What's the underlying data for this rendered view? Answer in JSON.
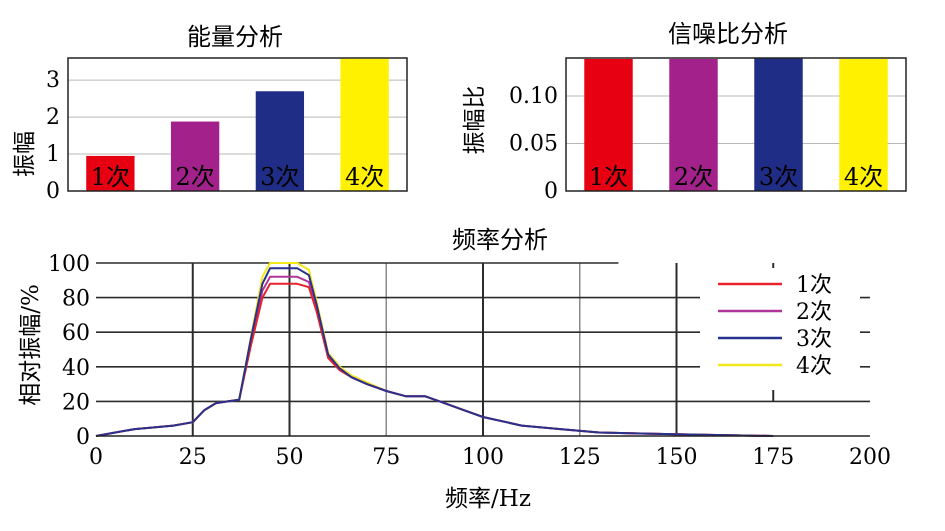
{
  "chart_data": [
    {
      "type": "bar",
      "title": "能量分析",
      "xlabel": "",
      "ylabel": "振幅",
      "categories": [
        "1次",
        "2次",
        "3次",
        "4次"
      ],
      "values": [
        0.95,
        1.88,
        2.7,
        3.58
      ],
      "colors": [
        "#e60012",
        "#a3218a",
        "#1f2d86",
        "#fff100"
      ],
      "ylim": [
        0,
        3.6
      ],
      "yticks": [
        "0",
        "1",
        "2",
        "3"
      ],
      "grid": true
    },
    {
      "type": "bar",
      "title": "信噪比分析",
      "xlabel": "",
      "ylabel": "振幅比",
      "categories": [
        "1次",
        "2次",
        "3次",
        "4次"
      ],
      "values": [
        0.139,
        0.139,
        0.14,
        0.139
      ],
      "colors": [
        "#e60012",
        "#a3218a",
        "#1f2d86",
        "#fff100"
      ],
      "ylim": [
        0,
        0.14
      ],
      "yticks": [
        "0",
        "0.05",
        "0.10"
      ],
      "grid": true
    },
    {
      "type": "line",
      "title": "频率分析",
      "xlabel": "频率/Hz",
      "ylabel": "相对振幅/%",
      "xlim": [
        0,
        200
      ],
      "ylim": [
        0,
        100
      ],
      "xticks": [
        "0",
        "25",
        "50",
        "75",
        "100",
        "125",
        "150",
        "175",
        "200"
      ],
      "yticks": [
        "0",
        "20",
        "40",
        "60",
        "80",
        "100"
      ],
      "grid": true,
      "legend": "top-right",
      "x": [
        0,
        5,
        10,
        15,
        20,
        25,
        28,
        31,
        34,
        37,
        40,
        43,
        45,
        48,
        52,
        55,
        57,
        60,
        63,
        66,
        70,
        75,
        80,
        85,
        90,
        95,
        100,
        110,
        120,
        130,
        150,
        175
      ],
      "series": [
        {
          "name": "1次",
          "color": "#e8222c",
          "values": [
            0,
            2,
            4,
            5,
            6,
            8,
            15,
            19,
            20,
            21,
            52,
            80,
            88,
            88,
            88,
            86,
            72,
            45,
            38,
            34,
            30,
            26,
            23,
            23,
            19,
            15,
            11,
            6,
            4,
            2,
            1,
            0
          ]
        },
        {
          "name": "2次",
          "color": "#b0359b",
          "values": [
            0,
            2,
            4,
            5,
            6,
            8,
            15,
            19,
            20,
            21,
            54,
            84,
            92,
            92,
            92,
            89,
            74,
            46,
            39,
            34,
            30,
            26,
            23,
            23,
            19,
            15,
            11,
            6,
            4,
            2,
            1,
            0
          ]
        },
        {
          "name": "3次",
          "color": "#27328f",
          "values": [
            0,
            2,
            4,
            5,
            6,
            8,
            15,
            19,
            20,
            21,
            56,
            88,
            97,
            97,
            97,
            93,
            76,
            47,
            39,
            34,
            30,
            26,
            23,
            23,
            19,
            15,
            11,
            6,
            4,
            2,
            1,
            0
          ]
        },
        {
          "name": "4次",
          "color": "#f2e81a",
          "values": [
            0,
            2,
            4,
            5,
            6,
            8,
            15,
            19,
            20,
            21,
            57,
            92,
            100,
            100,
            100,
            96,
            78,
            48,
            40,
            35,
            31,
            26,
            23,
            23,
            19,
            15,
            11,
            6,
            4,
            2,
            1,
            0
          ]
        }
      ]
    }
  ]
}
